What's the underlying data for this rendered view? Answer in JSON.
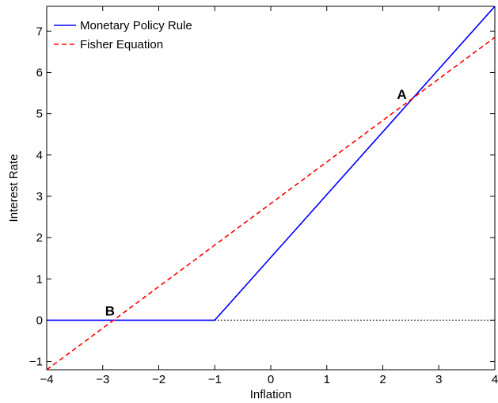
{
  "chart_data": {
    "type": "line",
    "title": "",
    "xlabel": "Inflation",
    "ylabel": "Interest Rate",
    "xlim": [
      -4,
      4
    ],
    "ylim": [
      -1.2,
      7.6
    ],
    "xticks": [
      -4,
      -3,
      -2,
      -1,
      0,
      1,
      2,
      3,
      4
    ],
    "yticks": [
      -1,
      0,
      1,
      2,
      3,
      4,
      5,
      6,
      7
    ],
    "xtick_labels": [
      "−4",
      "−3",
      "−2",
      "−1",
      "0",
      "1",
      "2",
      "3",
      "4"
    ],
    "ytick_labels": [
      "−1",
      "0",
      "1",
      "2",
      "3",
      "4",
      "5",
      "6",
      "7"
    ],
    "grid": false,
    "legend_position": "top-left",
    "series": [
      {
        "name": "Monetary Policy Rule",
        "style": "solid",
        "color": "#0000ff",
        "x": [
          -4,
          -1,
          4
        ],
        "y": [
          0,
          0,
          7.6
        ]
      },
      {
        "name": "Fisher Equation",
        "style": "dashed",
        "color": "#ff0000",
        "x": [
          -4,
          4
        ],
        "y": [
          -1.2,
          6.85
        ]
      }
    ],
    "reference_line": {
      "style": "dotted",
      "color": "#000000",
      "x": [
        -1,
        4
      ],
      "y": [
        0,
        0
      ]
    },
    "annotations": [
      {
        "label": "A",
        "x": 2.48,
        "y": 5.32
      },
      {
        "label": "B",
        "x": -2.8,
        "y": 0.0
      }
    ]
  }
}
